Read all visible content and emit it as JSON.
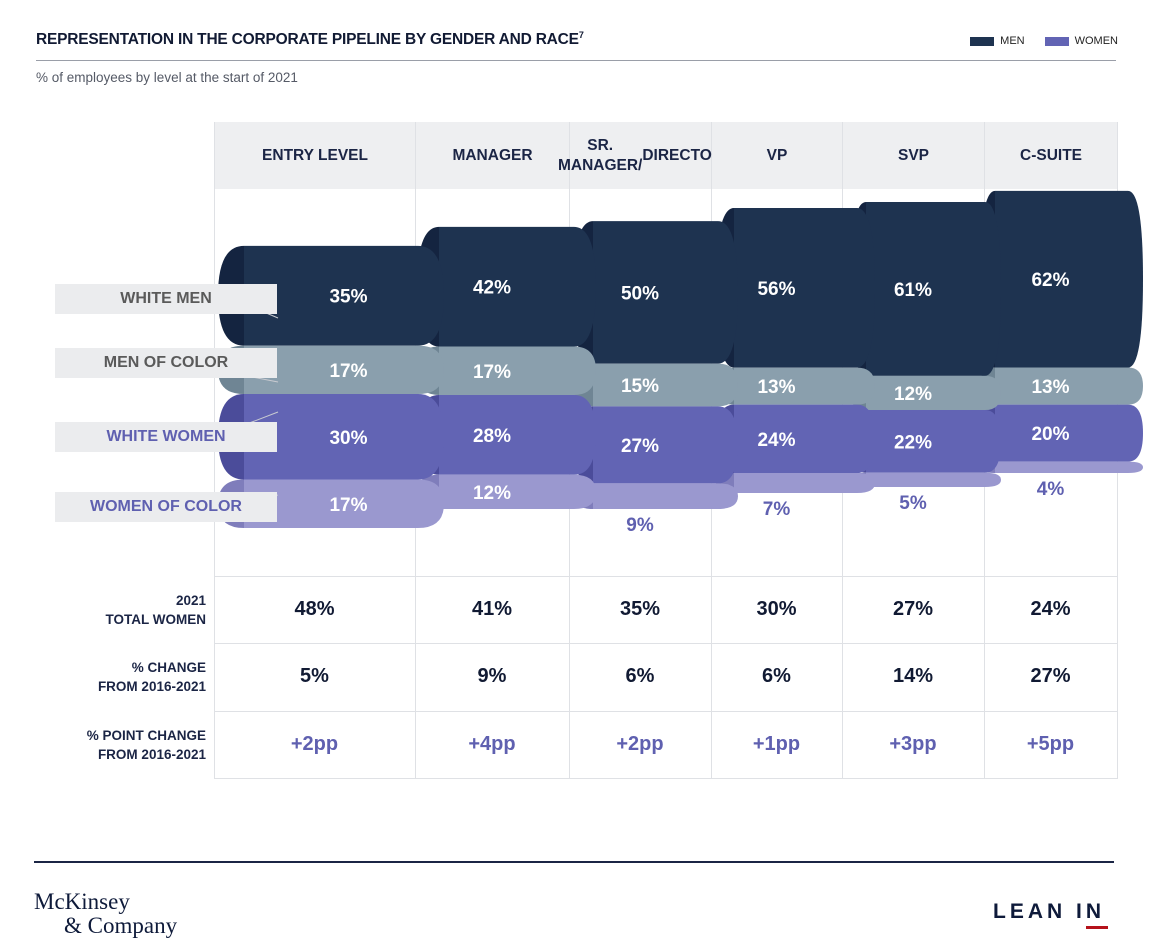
{
  "header": {
    "title": "REPRESENTATION IN THE CORPORATE PIPELINE BY GENDER AND RACE",
    "footnote": "7",
    "subtitle": "% of employees by level at the start of 2021"
  },
  "legend": [
    {
      "label": "MEN",
      "color": "#1e3350"
    },
    {
      "label": "WOMEN",
      "color": "#6264b4"
    }
  ],
  "colors": {
    "white_men": "#1e3350",
    "men_of_color": "#8a9fad",
    "white_women": "#6264b4",
    "women_of_color": "#9a98cf",
    "label_men": "#5a5a5a",
    "label_women": "#5f60b0"
  },
  "segment_labels": [
    "WHITE MEN",
    "MEN OF COLOR",
    "WHITE WOMEN",
    "WOMEN OF COLOR"
  ],
  "chart_data": {
    "type": "bar",
    "title": "REPRESENTATION IN THE CORPORATE PIPELINE BY GENDER AND RACE",
    "subtitle": "% of employees by level at the start of 2021",
    "categories": [
      "ENTRY LEVEL",
      "MANAGER",
      "SR. MANAGER/ DIRECTOR",
      "VP",
      "SVP",
      "C-SUITE"
    ],
    "series": [
      {
        "name": "WHITE MEN",
        "group": "MEN",
        "values": [
          35,
          42,
          50,
          56,
          61,
          62
        ]
      },
      {
        "name": "MEN OF COLOR",
        "group": "MEN",
        "values": [
          17,
          17,
          15,
          13,
          12,
          13
        ]
      },
      {
        "name": "WHITE WOMEN",
        "group": "WOMEN",
        "values": [
          30,
          28,
          27,
          24,
          22,
          20
        ]
      },
      {
        "name": "WOMEN OF COLOR",
        "group": "WOMEN",
        "values": [
          17,
          12,
          9,
          7,
          5,
          4
        ]
      }
    ],
    "stacked": true,
    "unit": "%"
  },
  "table": {
    "rows": [
      {
        "label_1": "2021",
        "label_2": "TOTAL WOMEN",
        "values": [
          "48%",
          "41%",
          "35%",
          "30%",
          "27%",
          "24%"
        ],
        "style": "dark"
      },
      {
        "label_1": "% CHANGE",
        "label_2": "FROM 2016-2021",
        "values": [
          "5%",
          "9%",
          "6%",
          "6%",
          "14%",
          "27%"
        ],
        "style": "dark"
      },
      {
        "label_1": "% POINT CHANGE",
        "label_2": "FROM 2016-2021",
        "values": [
          "+2pp",
          "+4pp",
          "+2pp",
          "+1pp",
          "+3pp",
          "+5pp"
        ],
        "style": "pp"
      }
    ]
  },
  "footer": {
    "mckinsey_line1": "McKinsey",
    "mckinsey_line2": "& Company",
    "leanin": "LEAN IN"
  }
}
